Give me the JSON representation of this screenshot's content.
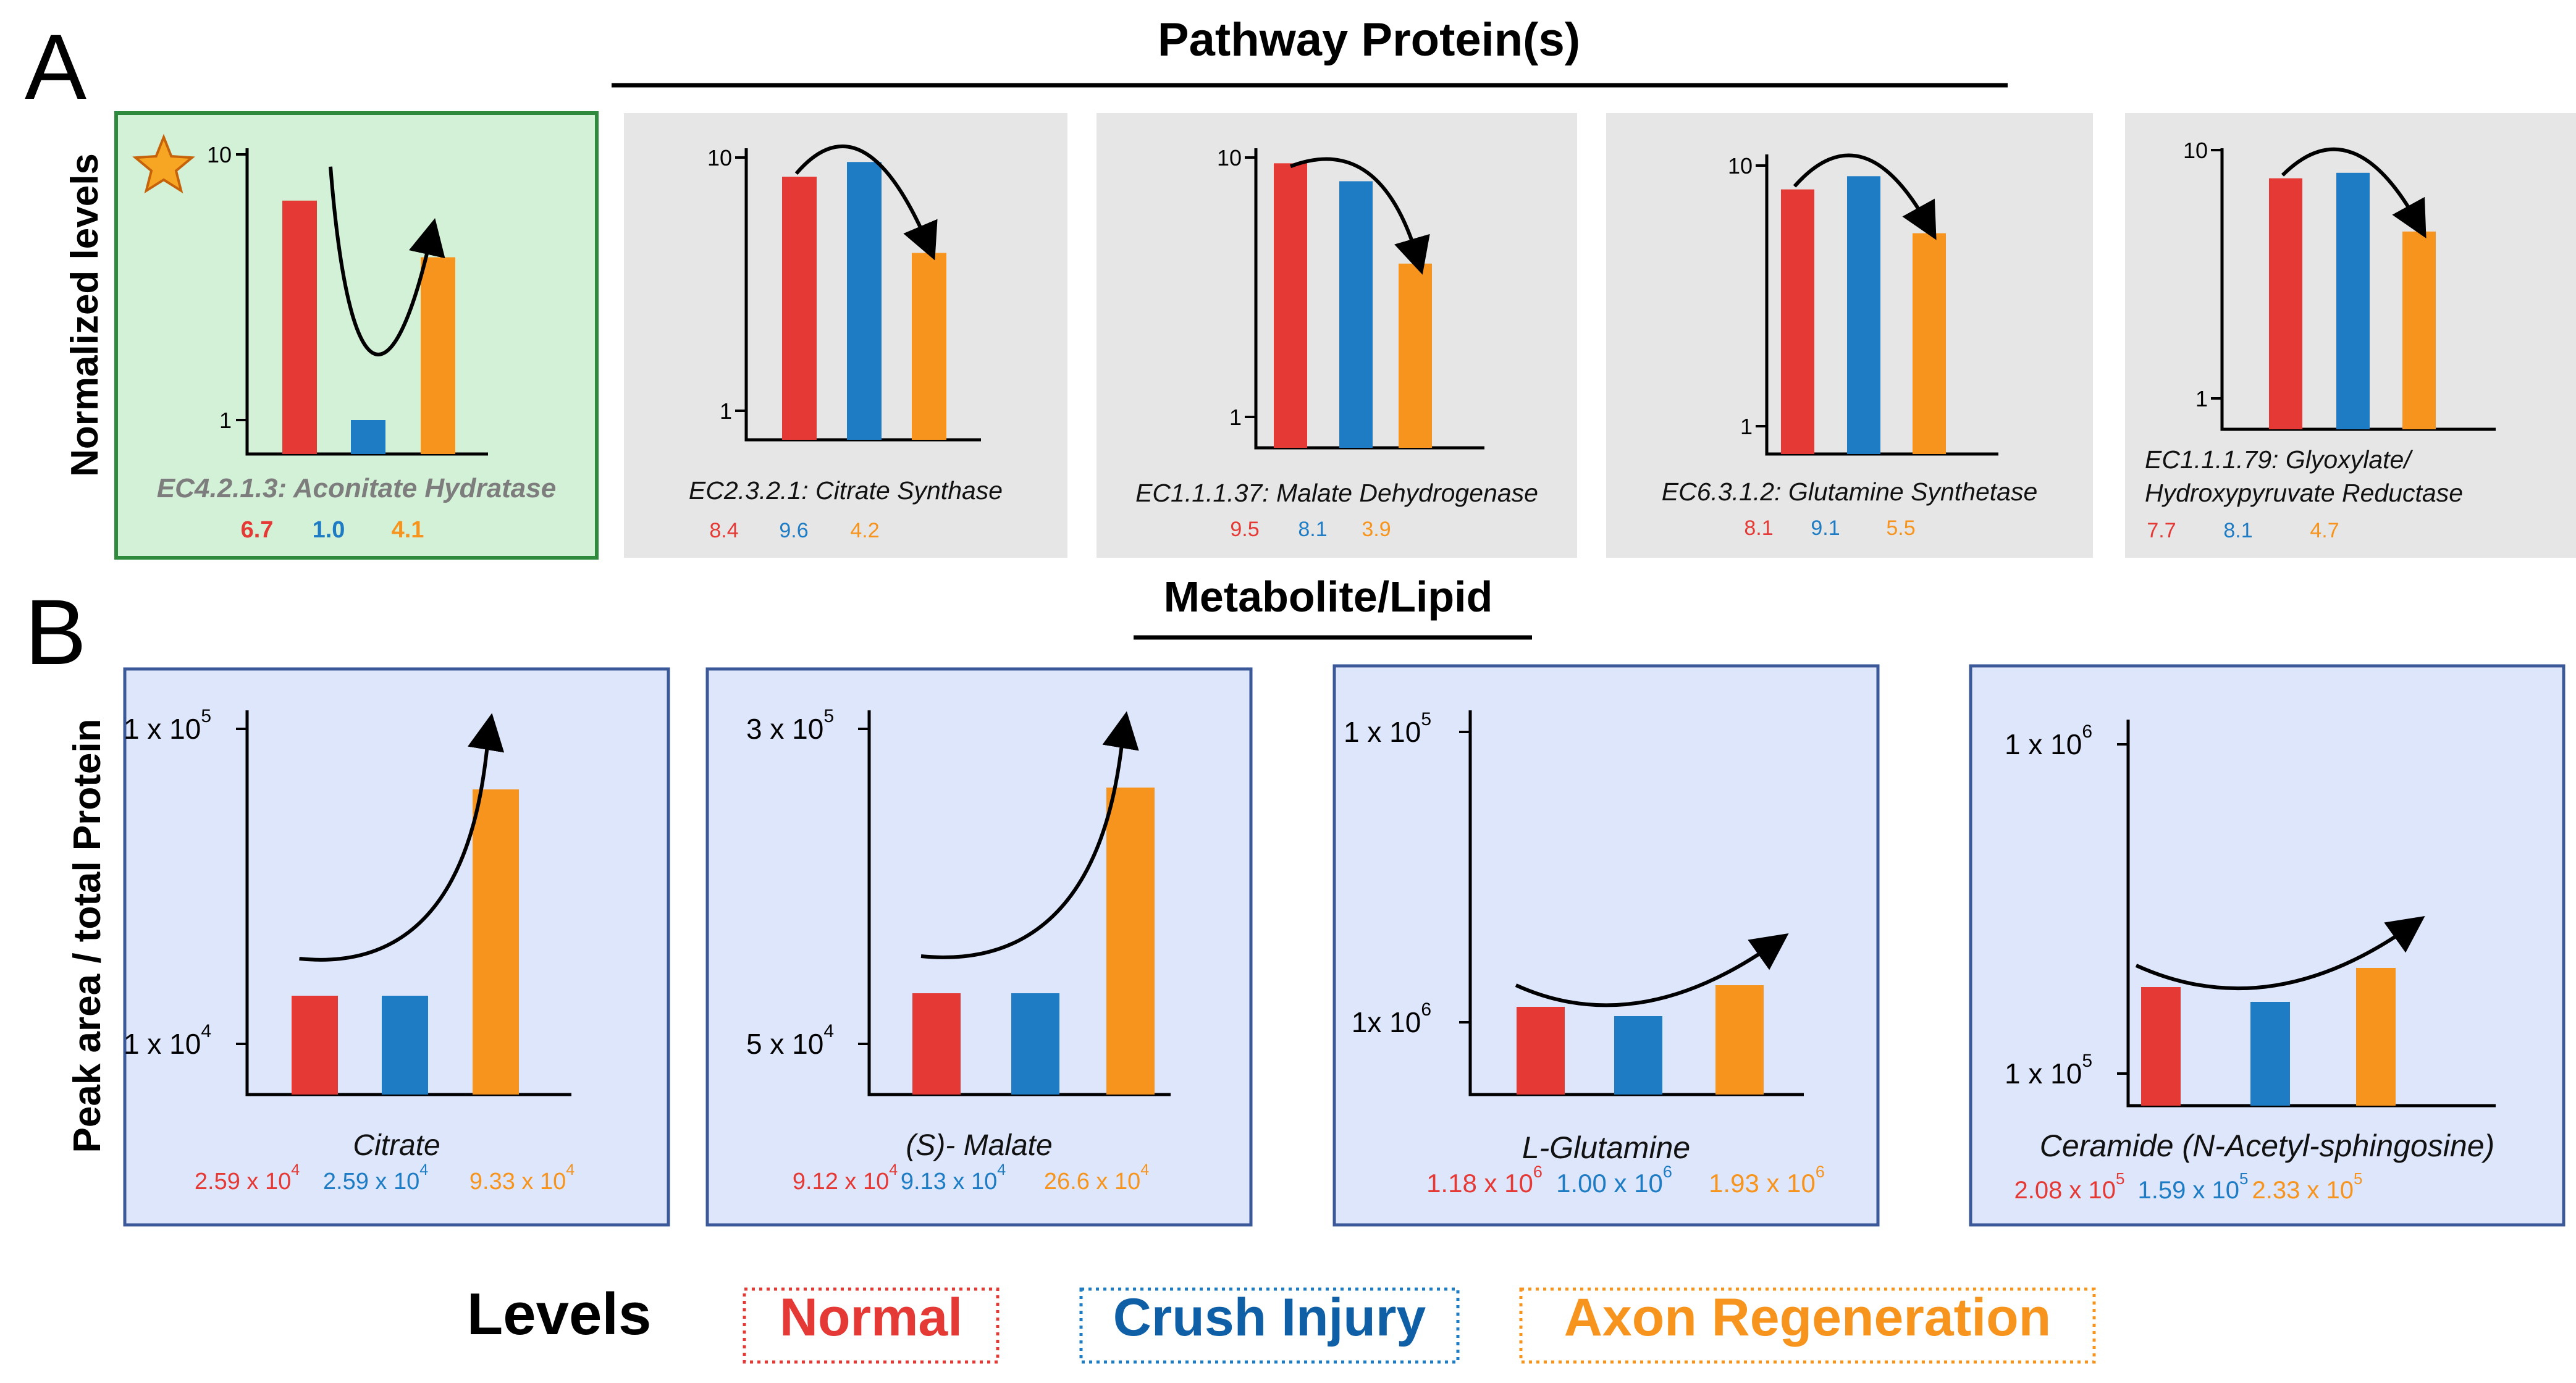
{
  "colors": {
    "normal": "#E53935",
    "crush": "#1E7CC4",
    "regen": "#F7941D",
    "star": "#F6A623",
    "greenBg": "#D3F1D6",
    "greenBorder": "#2E8B3E",
    "grayBg": "#E6E6E6",
    "blueBg": "#DDE6FA",
    "blueBorder": "#3B5998"
  },
  "section_a": {
    "letter": "A",
    "title": "Pathway Protein(s)",
    "ylabel": "Normalized levels"
  },
  "section_b": {
    "letter": "B",
    "title": "Metabolite/Lipid",
    "ylabel": "Peak area / total Protein"
  },
  "legend": {
    "title": "Levels",
    "items": [
      "Normal",
      "Crush Injury",
      "Axon Regeneration"
    ]
  },
  "chart_data": [
    {
      "type": "bar",
      "id": "aconitate",
      "highlight": true,
      "title_lines": [
        "EC4.2.1.3: Aconitate Hydratase"
      ],
      "categories": [
        "Normal",
        "Crush Injury",
        "Axon Regeneration"
      ],
      "values": [
        6.7,
        1.0,
        4.1
      ],
      "labels": [
        "6.7",
        "1.0",
        "4.1"
      ],
      "yticks": [
        "10",
        "1"
      ],
      "yscale": "log",
      "trend": "decrease-then-increase"
    },
    {
      "type": "bar",
      "id": "citrate_synthase",
      "title_lines": [
        "EC2.3.2.1: Citrate Synthase"
      ],
      "categories": [
        "Normal",
        "Crush Injury",
        "Axon Regeneration"
      ],
      "values": [
        8.4,
        9.6,
        4.2
      ],
      "labels": [
        "8.4",
        "9.6",
        "4.2"
      ],
      "yticks": [
        "10",
        "1"
      ],
      "yscale": "log",
      "trend": "increase-then-decrease"
    },
    {
      "type": "bar",
      "id": "malate_dh",
      "title_lines": [
        "EC1.1.1.37: Malate Dehydrogenase"
      ],
      "categories": [
        "Normal",
        "Crush Injury",
        "Axon Regeneration"
      ],
      "values": [
        9.5,
        8.1,
        3.9
      ],
      "labels": [
        "9.5",
        "8.1",
        "3.9"
      ],
      "yticks": [
        "10",
        "1"
      ],
      "yscale": "log",
      "trend": "decrease"
    },
    {
      "type": "bar",
      "id": "glutamine_synth",
      "title_lines": [
        "EC6.3.1.2: Glutamine Synthetase"
      ],
      "categories": [
        "Normal",
        "Crush Injury",
        "Axon Regeneration"
      ],
      "values": [
        8.1,
        9.1,
        5.5
      ],
      "labels": [
        "8.1",
        "9.1",
        "5.5"
      ],
      "yticks": [
        "10",
        "1"
      ],
      "yscale": "log",
      "trend": "increase-then-decrease"
    },
    {
      "type": "bar",
      "id": "glyoxylate_red",
      "title_lines": [
        "EC1.1.1.79: Glyoxylate/",
        "Hydroxypyruvate Reductase"
      ],
      "categories": [
        "Normal",
        "Crush Injury",
        "Axon Regeneration"
      ],
      "values": [
        7.7,
        8.1,
        4.7
      ],
      "labels": [
        "7.7",
        "8.1",
        "4.7"
      ],
      "yticks": [
        "10",
        "1"
      ],
      "yscale": "log",
      "trend": "increase-then-decrease"
    },
    {
      "type": "bar",
      "id": "citrate",
      "title_lines": [
        "Citrate"
      ],
      "categories": [
        "Normal",
        "Crush Injury",
        "Axon Regeneration"
      ],
      "values": [
        25900,
        25900,
        93300
      ],
      "labels": [
        {
          "m": "2.59 x 10",
          "e": "4"
        },
        {
          "m": "2.59 x 10",
          "e": "4"
        },
        {
          "m": "9.33 x 10",
          "e": "4"
        }
      ],
      "yticks": [
        {
          "m": "1 x 10",
          "e": "5"
        },
        {
          "m": "1 x 10",
          "e": "4"
        }
      ],
      "trend": "increase"
    },
    {
      "type": "bar",
      "id": "malate",
      "title_lines": [
        "(S)- Malate"
      ],
      "categories": [
        "Normal",
        "Crush Injury",
        "Axon Regeneration"
      ],
      "values": [
        91200,
        91300,
        266000
      ],
      "labels": [
        {
          "m": "9.12 x 10",
          "e": "4"
        },
        {
          "m": "9.13 x 10",
          "e": "4"
        },
        {
          "m": "26.6 x 10",
          "e": "4"
        }
      ],
      "yticks": [
        {
          "m": "3 x 10",
          "e": "5"
        },
        {
          "m": "5 x 10",
          "e": "4"
        }
      ],
      "trend": "increase"
    },
    {
      "type": "bar",
      "id": "glutamine",
      "title_lines": [
        "L-Glutamine"
      ],
      "categories": [
        "Normal",
        "Crush Injury",
        "Axon Regeneration"
      ],
      "values": [
        1180000,
        1000000,
        1930000
      ],
      "labels": [
        {
          "m": "1.18 x 10",
          "e": "6"
        },
        {
          "m": "1.00 x 10",
          "e": "6"
        },
        {
          "m": "1.93 x 10",
          "e": "6"
        }
      ],
      "yticks": [
        {
          "m": "1 x 10",
          "e": "5"
        },
        {
          "m": "1x 10",
          "e": "6"
        }
      ],
      "trend": "decrease-then-increase"
    },
    {
      "type": "bar",
      "id": "ceramide",
      "title_lines": [
        "Ceramide (N-Acetyl-sphingosine)"
      ],
      "categories": [
        "Normal",
        "Crush Injury",
        "Axon Regeneration"
      ],
      "values": [
        208000,
        159000,
        233000
      ],
      "labels": [
        {
          "m": "2.08 x 10",
          "e": "5"
        },
        {
          "m": "1.59 x 10",
          "e": "5"
        },
        {
          "m": "2.33 x 10",
          "e": "5"
        }
      ],
      "yticks": [
        {
          "m": "1 x 10",
          "e": "6"
        },
        {
          "m": "1 x 10",
          "e": "5"
        }
      ],
      "trend": "decrease-then-increase"
    }
  ]
}
